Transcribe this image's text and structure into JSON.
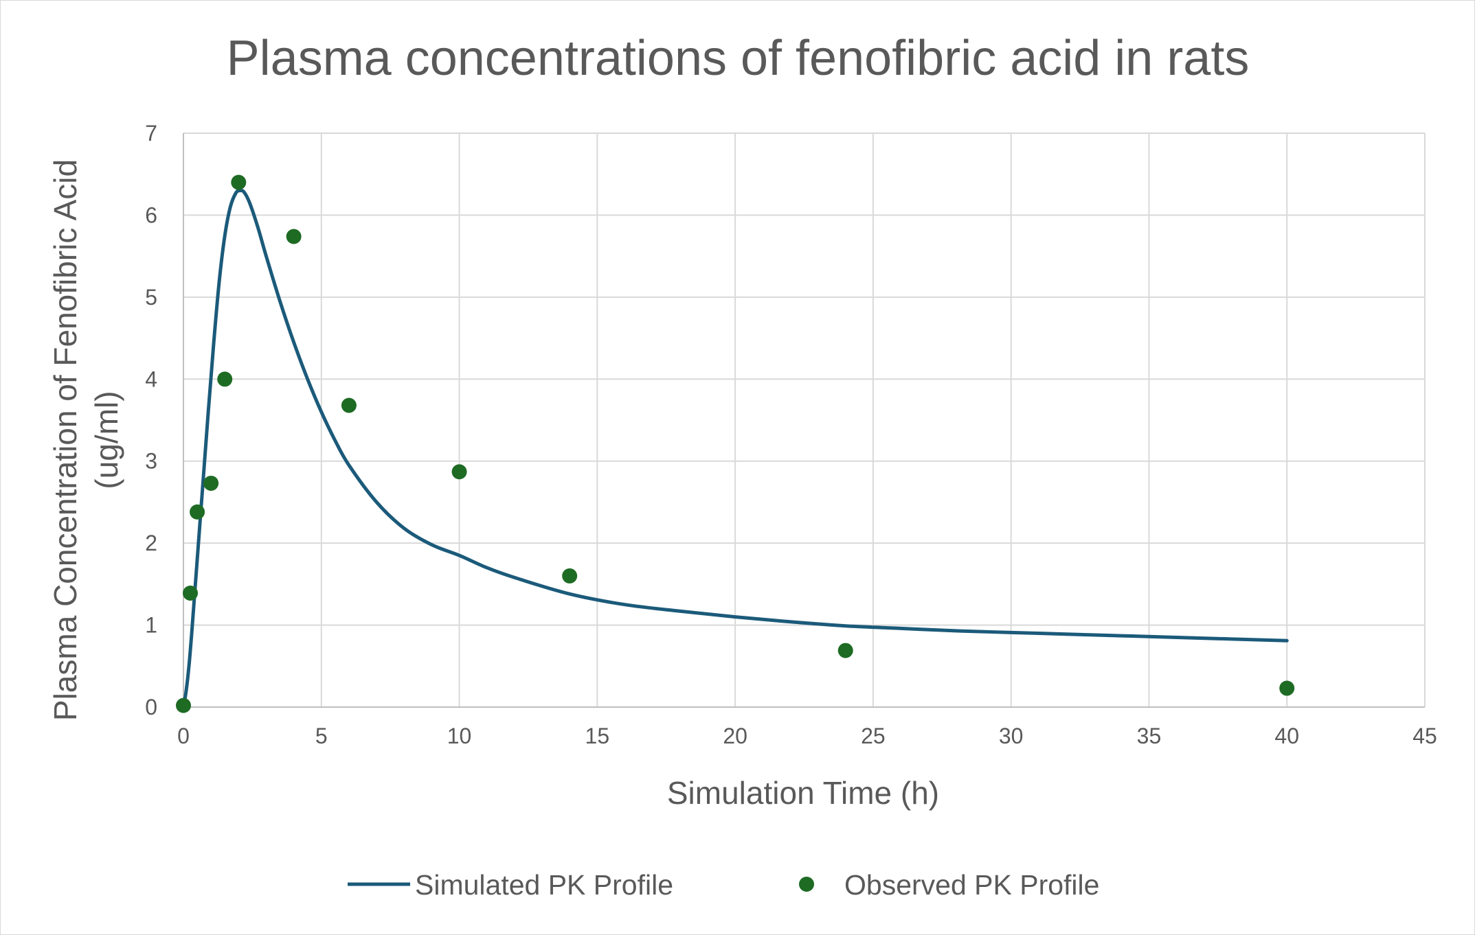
{
  "chart_data": {
    "type": "scatter",
    "title": "Plasma concentrations of fenofibric acid in rats",
    "xlabel": "Simulation Time (h)",
    "ylabel": [
      "Plasma Concentration of Fenofibric Acid",
      "(ug/ml)"
    ],
    "xlim": [
      0,
      45
    ],
    "ylim": [
      0,
      7
    ],
    "x_ticks": [
      "0",
      "5",
      "10",
      "15",
      "20",
      "25",
      "30",
      "35",
      "40",
      "45"
    ],
    "y_ticks": [
      "0",
      "1",
      "2",
      "3",
      "4",
      "5",
      "6",
      "7"
    ],
    "grid": true,
    "legend_position": "bottom",
    "series": [
      {
        "name": "Simulated PK Profile",
        "kind": "line",
        "color": "#1b5a7a",
        "x": [
          0,
          0.1,
          0.2,
          0.3,
          0.4,
          0.5,
          0.7,
          0.9,
          1.1,
          1.3,
          1.5,
          1.7,
          1.9,
          2.05,
          2.2,
          2.4,
          2.7,
          3.0,
          3.5,
          4.0,
          4.5,
          5.0,
          5.5,
          6.0,
          7.0,
          8.0,
          9.0,
          10.0,
          11.0,
          12.0,
          14.0,
          16.0,
          18.0,
          20.0,
          22.0,
          24.0,
          26.0,
          28.0,
          30.0,
          32.0,
          34.0,
          36.0,
          38.0,
          40.0
        ],
        "y": [
          0,
          0.2,
          0.5,
          0.9,
          1.35,
          1.8,
          2.7,
          3.6,
          4.45,
          5.2,
          5.75,
          6.1,
          6.27,
          6.3,
          6.28,
          6.15,
          5.85,
          5.5,
          4.95,
          4.45,
          4.0,
          3.6,
          3.25,
          2.95,
          2.5,
          2.18,
          1.98,
          1.85,
          1.7,
          1.58,
          1.38,
          1.25,
          1.17,
          1.1,
          1.04,
          0.99,
          0.96,
          0.93,
          0.91,
          0.89,
          0.87,
          0.85,
          0.83,
          0.81
        ]
      },
      {
        "name": "Observed PK Profile",
        "kind": "scatter",
        "color": "#1e6b24",
        "x": [
          0,
          0.25,
          0.5,
          1,
          1.5,
          2,
          4,
          6,
          10,
          14,
          24,
          40
        ],
        "y": [
          0.02,
          1.39,
          2.38,
          2.73,
          4.0,
          6.4,
          5.74,
          3.68,
          2.87,
          1.6,
          0.69,
          0.23
        ]
      }
    ]
  }
}
